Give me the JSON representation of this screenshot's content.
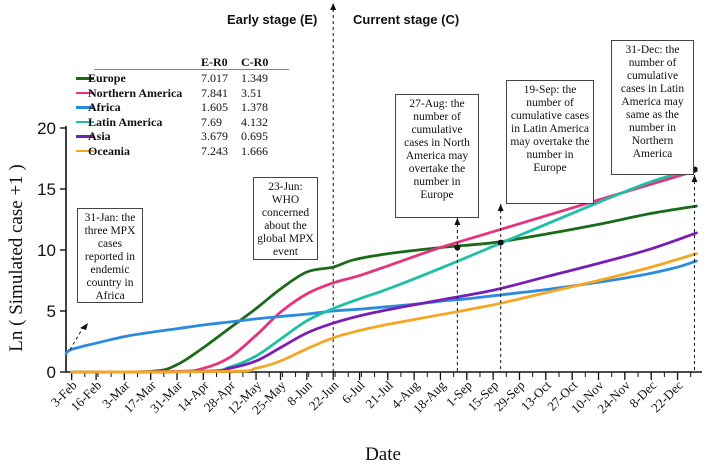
{
  "chart_data": {
    "type": "line",
    "title": "",
    "xlabel": "Date",
    "ylabel": "Ln ( Simulated case +1 )",
    "ylim": [
      0,
      20
    ],
    "yticks": [
      "0",
      "5",
      "10",
      "15",
      "20"
    ],
    "categories": [
      "3-Feb",
      "16-Feb",
      "3-Mar",
      "17-Mar",
      "31-Mar",
      "14-Apr",
      "28-Apr",
      "12-May",
      "25-May",
      "8-Jun",
      "22-Jun",
      "6-Jul",
      "21-Jul",
      "4-Aug",
      "18-Aug",
      "1-Sep",
      "15-Sep",
      "29-Sep",
      "13-Oct",
      "27-Oct",
      "10-Nov",
      "24-Nov",
      "8-Dec",
      "22-Dec"
    ],
    "x_days": [
      0,
      13,
      28,
      42,
      56,
      70,
      84,
      98,
      111,
      125,
      139,
      153,
      168,
      182,
      196,
      210,
      224,
      238,
      252,
      266,
      280,
      294,
      308,
      322
    ],
    "series": [
      {
        "name": "Europe",
        "color": "#1a6b1a",
        "x": [
          0,
          42,
          56,
          70,
          84,
          98,
          111,
          125,
          139,
          150,
          168,
          196,
          224,
          252,
          280,
          308,
          332
        ],
        "values": [
          0,
          0.05,
          0.6,
          2,
          3.6,
          5.2,
          6.8,
          8.2,
          8.6,
          9.2,
          9.7,
          10.2,
          10.6,
          11.3,
          12.1,
          13,
          13.6
        ]
      },
      {
        "name": "Northern America",
        "color": "#e6337f",
        "x": [
          0,
          56,
          70,
          84,
          98,
          111,
          125,
          139,
          153,
          168,
          196,
          224,
          252,
          280,
          308,
          332
        ],
        "values": [
          0,
          0.05,
          0.3,
          1.2,
          3,
          4.9,
          6.4,
          7.3,
          7.9,
          8.7,
          10.2,
          11.5,
          12.8,
          14.1,
          15.4,
          16.5
        ]
      },
      {
        "name": "Africa",
        "color": "#2b8be0",
        "x": [
          -3,
          0,
          14,
          28,
          42,
          56,
          70,
          84,
          98,
          111,
          125,
          139,
          153,
          168,
          182,
          196,
          210,
          224,
          238,
          252,
          266,
          280,
          294,
          308,
          322,
          332
        ],
        "values": [
          1.5,
          1.85,
          2.4,
          2.9,
          3.25,
          3.55,
          3.85,
          4.1,
          4.35,
          4.55,
          4.75,
          5.0,
          5.15,
          5.35,
          5.55,
          5.8,
          6.0,
          6.25,
          6.5,
          6.75,
          7.05,
          7.35,
          7.7,
          8.1,
          8.6,
          9.1
        ]
      },
      {
        "name": "Latin America",
        "color": "#1ebfa4",
        "x": [
          0,
          70,
          84,
          98,
          111,
          125,
          139,
          153,
          168,
          196,
          224,
          252,
          280,
          308,
          332
        ],
        "values": [
          0,
          0.05,
          0.4,
          1.3,
          2.7,
          4.2,
          5.2,
          6.0,
          6.8,
          8.5,
          10.3,
          12.1,
          13.9,
          15.6,
          16.7
        ]
      },
      {
        "name": "Asia",
        "color": "#7a1fb5",
        "x": [
          0,
          70,
          84,
          98,
          111,
          125,
          139,
          153,
          168,
          196,
          224,
          252,
          280,
          308,
          332
        ],
        "values": [
          0,
          0.05,
          0.3,
          0.9,
          2.0,
          3.2,
          4.0,
          4.6,
          5.1,
          5.9,
          6.7,
          7.8,
          8.9,
          10.1,
          11.4
        ]
      },
      {
        "name": "Oceania",
        "color": "#f5a623",
        "x": [
          0,
          84,
          98,
          111,
          125,
          139,
          153,
          168,
          196,
          224,
          252,
          280,
          308,
          332
        ],
        "values": [
          0,
          0.05,
          0.3,
          0.9,
          1.9,
          2.8,
          3.4,
          3.9,
          4.7,
          5.5,
          6.5,
          7.5,
          8.6,
          9.7
        ]
      }
    ],
    "r0_table": {
      "headers": [
        "E-R0",
        "C-R0"
      ],
      "rows": [
        {
          "name": "Europe",
          "e_r0": "7.017",
          "c_r0": "1.349"
        },
        {
          "name": "Northern America",
          "e_r0": "7.841",
          "c_r0": "3.51"
        },
        {
          "name": "Africa",
          "e_r0": "1.605",
          "c_r0": "1.378"
        },
        {
          "name": "Latin America",
          "e_r0": "7.69",
          "c_r0": "4.132"
        },
        {
          "name": "Asia",
          "e_r0": "3.679",
          "c_r0": "0.695"
        },
        {
          "name": "Oceania",
          "e_r0": "7.243",
          "c_r0": "1.666"
        }
      ]
    },
    "stages": {
      "early": "Early stage (E)",
      "current": "Current stage (C)",
      "divider_day": 139
    },
    "annotations": [
      {
        "id": "jan31",
        "text": "31-Jan: the three MPX cases reported in endemic country in Africa",
        "target_day": -3,
        "target_value": 1.5
      },
      {
        "id": "jun23",
        "text": "23-Jun: WHO concerned about the global MPX event",
        "target_day": 140,
        "target_value": 8.6
      },
      {
        "id": "aug27",
        "text": "27-Aug: the number of cumulative cases in North America may overtake the number in Europe",
        "target_day": 205,
        "target_value": 10.2
      },
      {
        "id": "sep19",
        "text": "19-Sep: the number of cumulative cases in Latin America may overtake the number in Europe",
        "target_day": 228,
        "target_value": 10.6
      },
      {
        "id": "dec31",
        "text": "31-Dec: the number of cumulative cases in Latin America may same as the number in Northern America",
        "target_day": 331,
        "target_value": 16.6
      }
    ]
  }
}
